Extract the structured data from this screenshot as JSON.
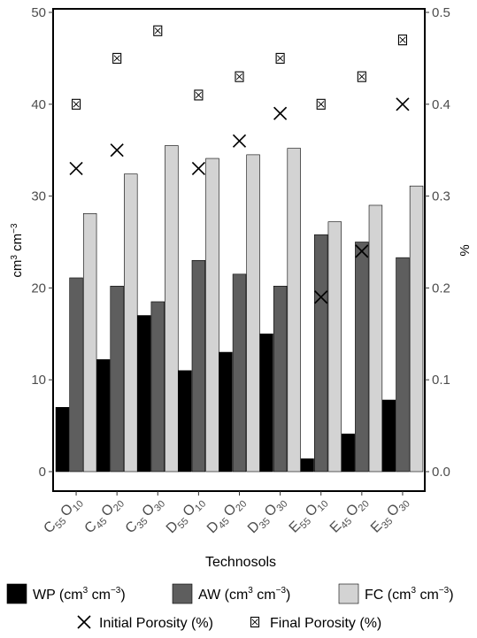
{
  "chart_data": {
    "type": "bar",
    "xlabel": "Technosols",
    "ylabel_left": "cm³ cm⁻³",
    "ylabel_right": "%",
    "ylim_left": [
      0,
      50
    ],
    "ylim_right": [
      0,
      0.5
    ],
    "yticks_left": [
      "0",
      "10",
      "20",
      "30",
      "40",
      "50"
    ],
    "yticks_right": [
      "0.0",
      "0.1",
      "0.2",
      "0.3",
      "0.4",
      "0.5"
    ],
    "categories": [
      {
        "main1": "C",
        "sub1": "55",
        "main2": "O",
        "sub2": "10"
      },
      {
        "main1": "C",
        "sub1": "45",
        "main2": "O",
        "sub2": "20"
      },
      {
        "main1": "C",
        "sub1": "35",
        "main2": "O",
        "sub2": "30"
      },
      {
        "main1": "D",
        "sub1": "55",
        "main2": "O",
        "sub2": "10"
      },
      {
        "main1": "D",
        "sub1": "45",
        "main2": "O",
        "sub2": "20"
      },
      {
        "main1": "D",
        "sub1": "35",
        "main2": "O",
        "sub2": "30"
      },
      {
        "main1": "E",
        "sub1": "55",
        "main2": "O",
        "sub2": "10"
      },
      {
        "main1": "E",
        "sub1": "45",
        "main2": "O",
        "sub2": "20"
      },
      {
        "main1": "E",
        "sub1": "35",
        "main2": "O",
        "sub2": "30"
      }
    ],
    "bar_series": [
      {
        "name": "WP",
        "color": "#000000",
        "values": [
          7.0,
          12.2,
          17.0,
          11.0,
          13.0,
          15.0,
          1.4,
          4.1,
          7.8
        ]
      },
      {
        "name": "AW",
        "color": "#5e5e5e",
        "values": [
          21.1,
          20.2,
          18.5,
          23.0,
          21.5,
          20.2,
          25.8,
          25.0,
          23.3
        ]
      },
      {
        "name": "FC",
        "color": "#d3d3d3",
        "values": [
          28.1,
          32.4,
          35.5,
          34.1,
          34.5,
          35.2,
          27.2,
          29.0,
          31.1
        ]
      }
    ],
    "point_series": [
      {
        "name": "Initial Porosity",
        "marker": "x",
        "values": [
          0.33,
          0.35,
          null,
          0.33,
          0.36,
          0.39,
          0.19,
          0.24,
          0.4
        ]
      },
      {
        "name": "Final Porosity",
        "marker": "boxed-x",
        "values": [
          0.4,
          0.45,
          0.48,
          0.41,
          0.43,
          0.45,
          0.4,
          0.43,
          0.47
        ]
      }
    ],
    "legend": {
      "placement": "bottom",
      "row1": [
        {
          "key": "WP",
          "label": "WP (cm",
          "sup1": "3",
          "mid": " cm",
          "sup2": "−3",
          "end": ")"
        },
        {
          "key": "AW",
          "label": "AW (cm",
          "sup1": "3",
          "mid": " cm",
          "sup2": "−3",
          "end": ")"
        },
        {
          "key": "FC",
          "label": "FC (cm",
          "sup1": "3",
          "mid": " cm",
          "sup2": "−3",
          "end": ")"
        }
      ],
      "row2": [
        {
          "key": "Initial Porosity",
          "label": "Initial Porosity (%)"
        },
        {
          "key": "Final Porosity",
          "label": "Final Porosity (%)"
        }
      ]
    },
    "grid": false
  }
}
